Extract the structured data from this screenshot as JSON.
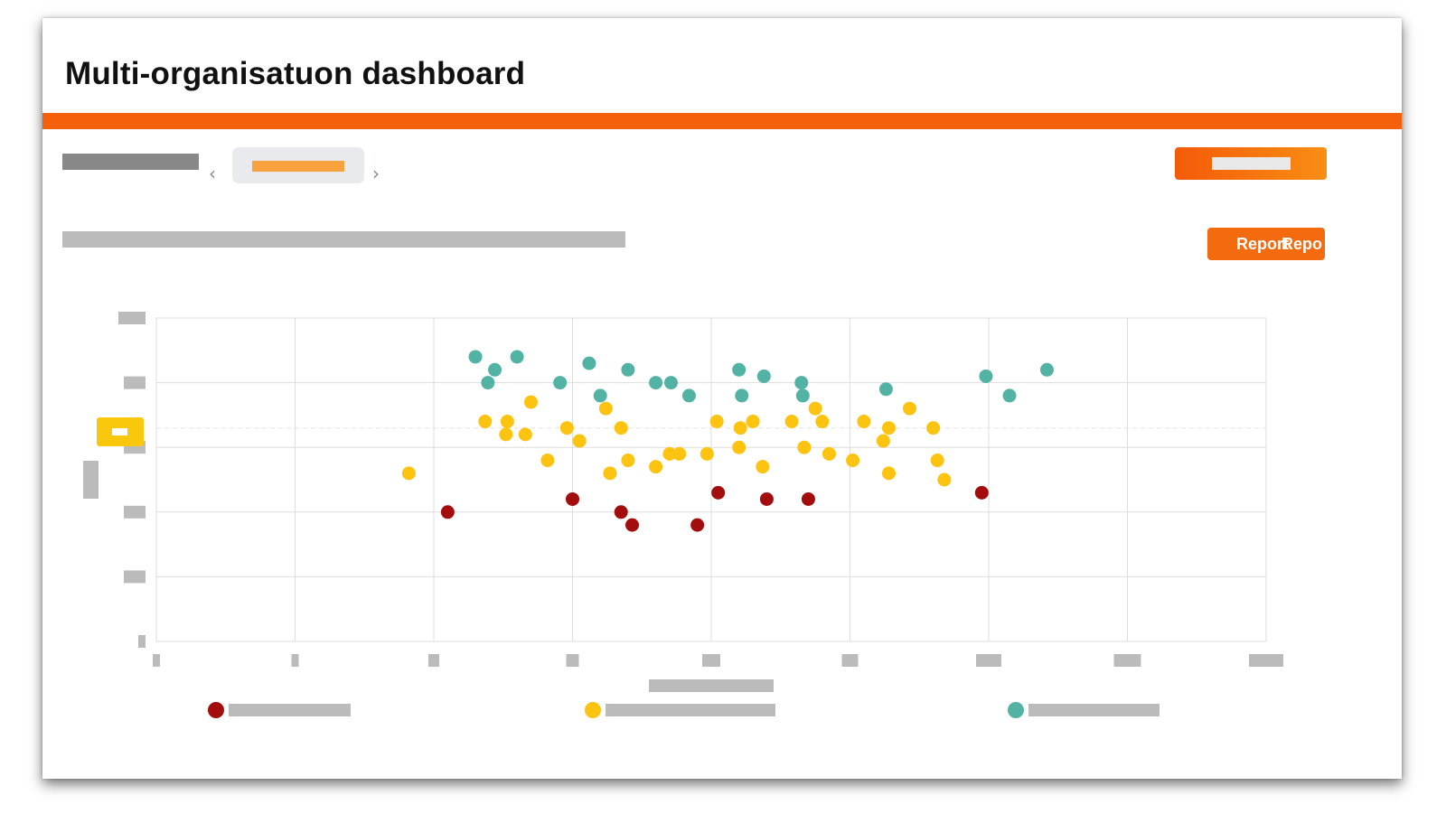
{
  "page": {
    "title": "Multi-organisatuon dashboard",
    "accent_color": "#f4600c"
  },
  "controls": {
    "prev_icon": "‹",
    "next_icon": "›",
    "report_button_label": "Report",
    "report_button_overflow": "Repo"
  },
  "colors": {
    "red": "#a30d0d",
    "yellow": "#fcc310",
    "teal": "#52b3a5",
    "grid": "#dddddd",
    "placeholder": "#bbbbbb"
  },
  "chart_data": {
    "type": "scatter",
    "xlim": [
      0,
      8
    ],
    "ylim": [
      0,
      5
    ],
    "grid": true,
    "reference_line_y": 3.3,
    "legend_position": "bottom",
    "series": [
      {
        "color": "red",
        "points": [
          [
            2.1,
            2.0
          ],
          [
            3.0,
            2.2
          ],
          [
            3.35,
            2.0
          ],
          [
            3.43,
            1.8
          ],
          [
            3.9,
            1.8
          ],
          [
            4.05,
            2.3
          ],
          [
            4.4,
            2.2
          ],
          [
            4.7,
            2.2
          ],
          [
            5.95,
            2.3
          ]
        ]
      },
      {
        "color": "yellow",
        "points": [
          [
            1.82,
            2.6
          ],
          [
            2.37,
            3.4
          ],
          [
            2.52,
            3.2
          ],
          [
            2.53,
            3.4
          ],
          [
            2.66,
            3.2
          ],
          [
            2.7,
            3.7
          ],
          [
            2.82,
            2.8
          ],
          [
            2.96,
            3.3
          ],
          [
            3.05,
            3.1
          ],
          [
            3.24,
            3.6
          ],
          [
            3.27,
            2.6
          ],
          [
            3.35,
            3.3
          ],
          [
            3.4,
            2.8
          ],
          [
            3.6,
            2.7
          ],
          [
            3.7,
            2.9
          ],
          [
            3.77,
            2.9
          ],
          [
            3.97,
            2.9
          ],
          [
            4.04,
            3.4
          ],
          [
            4.2,
            3.0
          ],
          [
            4.21,
            3.3
          ],
          [
            4.3,
            3.4
          ],
          [
            4.37,
            2.7
          ],
          [
            4.58,
            3.4
          ],
          [
            4.67,
            3.0
          ],
          [
            4.75,
            3.6
          ],
          [
            4.8,
            3.4
          ],
          [
            4.85,
            2.9
          ],
          [
            5.02,
            2.8
          ],
          [
            5.1,
            3.4
          ],
          [
            5.24,
            3.1
          ],
          [
            5.28,
            3.3
          ],
          [
            5.28,
            2.6
          ],
          [
            5.43,
            3.6
          ],
          [
            5.6,
            3.3
          ],
          [
            5.63,
            2.8
          ],
          [
            5.68,
            2.5
          ]
        ]
      },
      {
        "color": "teal",
        "points": [
          [
            2.3,
            4.4
          ],
          [
            2.39,
            4.0
          ],
          [
            2.44,
            4.2
          ],
          [
            2.6,
            4.4
          ],
          [
            2.91,
            4.0
          ],
          [
            3.12,
            4.3
          ],
          [
            3.2,
            3.8
          ],
          [
            3.4,
            4.2
          ],
          [
            3.6,
            4.0
          ],
          [
            3.71,
            4.0
          ],
          [
            3.84,
            3.8
          ],
          [
            4.2,
            4.2
          ],
          [
            4.22,
            3.8
          ],
          [
            4.38,
            4.1
          ],
          [
            4.65,
            4.0
          ],
          [
            4.66,
            3.8
          ],
          [
            5.26,
            3.9
          ],
          [
            5.98,
            4.1
          ],
          [
            6.15,
            3.8
          ],
          [
            6.42,
            4.2
          ]
        ]
      }
    ]
  }
}
